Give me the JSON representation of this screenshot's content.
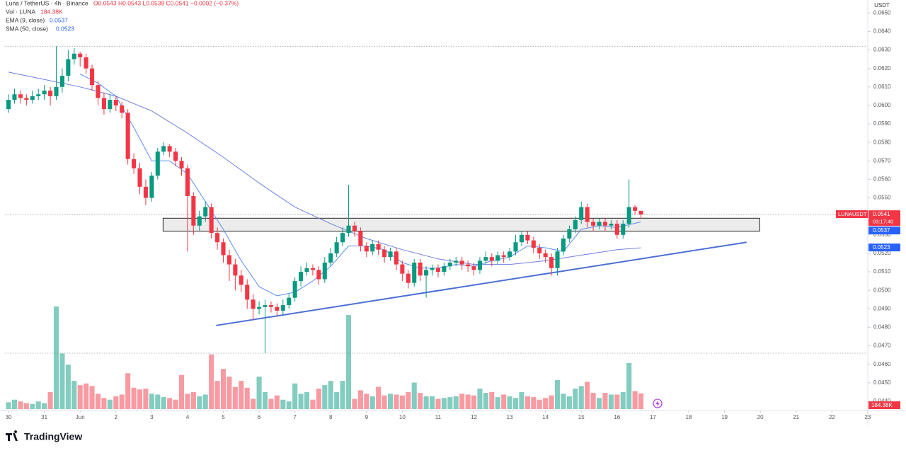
{
  "chart_data": {
    "type": "candlestick",
    "title": "Luna / TetherUS · 4h · Binance",
    "ohlc_summary": "O0.0543 H0.0543 L0.0539 C0.0541 −0.0002 (−0.37%)",
    "currency": "USDT",
    "countdown": "03:17:40",
    "brand": "TradingView",
    "up_color": "#089981",
    "down_color": "#f23645",
    "x": [
      0,
      1,
      2,
      3,
      4,
      5,
      6,
      7,
      8,
      9,
      10,
      11,
      12,
      13,
      14,
      15,
      16,
      17,
      18,
      19,
      20,
      21,
      22,
      23,
      24,
      25,
      26,
      27,
      28,
      29,
      30,
      31,
      32,
      33,
      34,
      35,
      36,
      37,
      38,
      39,
      40,
      41,
      42,
      43,
      44,
      45,
      46,
      47,
      48,
      49,
      50,
      51,
      52,
      53,
      54,
      55,
      56,
      57,
      58,
      59,
      60,
      61,
      62,
      63,
      64,
      65,
      66,
      67,
      68,
      69,
      70,
      71,
      72,
      73,
      74,
      75,
      76,
      77,
      78,
      79,
      80,
      81,
      82,
      83,
      84,
      85,
      86,
      87,
      88,
      89,
      90,
      91,
      92,
      93,
      94,
      95,
      96,
      97,
      98,
      99,
      100,
      101,
      102,
      103,
      104,
      105,
      106
    ],
    "open": [
      0.0598,
      0.0603,
      0.0606,
      0.0604,
      0.0603,
      0.0605,
      0.0606,
      0.0608,
      0.0605,
      0.061,
      0.0616,
      0.0625,
      0.0628,
      0.0626,
      0.062,
      0.0611,
      0.0604,
      0.0598,
      0.0603,
      0.06,
      0.0596,
      0.0571,
      0.0566,
      0.0556,
      0.055,
      0.0562,
      0.0575,
      0.0578,
      0.0575,
      0.057,
      0.0566,
      0.0551,
      0.0535,
      0.054,
      0.0545,
      0.0531,
      0.0526,
      0.0519,
      0.0514,
      0.0508,
      0.0503,
      0.0495,
      0.049,
      0.0491,
      0.0492,
      0.0491,
      0.0489,
      0.0492,
      0.0496,
      0.0505,
      0.051,
      0.0512,
      0.0511,
      0.0506,
      0.0515,
      0.052,
      0.0526,
      0.0531,
      0.0535,
      0.0532,
      0.0524,
      0.0521,
      0.0525,
      0.0522,
      0.0518,
      0.0521,
      0.0514,
      0.0509,
      0.0504,
      0.0515,
      0.0508,
      0.0511,
      0.0512,
      0.051,
      0.0513,
      0.0515,
      0.0516,
      0.0514,
      0.0513,
      0.0511,
      0.0516,
      0.0518,
      0.0516,
      0.0519,
      0.0518,
      0.0521,
      0.0526,
      0.053,
      0.0527,
      0.0523,
      0.052,
      0.0518,
      0.0512,
      0.0521,
      0.0528,
      0.0533,
      0.0538,
      0.0545,
      0.0537,
      0.0535,
      0.0537,
      0.0535,
      0.0536,
      0.053,
      0.0536,
      0.0545,
      0.0543
    ],
    "high": [
      0.0606,
      0.0609,
      0.0608,
      0.0606,
      0.0608,
      0.0609,
      0.0611,
      0.061,
      0.0632,
      0.062,
      0.063,
      0.0631,
      0.0629,
      0.0628,
      0.0622,
      0.0613,
      0.0607,
      0.0606,
      0.0605,
      0.0602,
      0.0598,
      0.0574,
      0.0569,
      0.056,
      0.0564,
      0.0577,
      0.058,
      0.0579,
      0.0577,
      0.0572,
      0.0568,
      0.0553,
      0.0543,
      0.0548,
      0.0547,
      0.0534,
      0.0528,
      0.0522,
      0.0517,
      0.0511,
      0.0506,
      0.0498,
      0.0494,
      0.0495,
      0.0494,
      0.0493,
      0.0495,
      0.0498,
      0.0507,
      0.0513,
      0.0515,
      0.0514,
      0.0513,
      0.0518,
      0.0523,
      0.0529,
      0.0534,
      0.0557,
      0.0537,
      0.0534,
      0.0526,
      0.0527,
      0.0527,
      0.0524,
      0.0523,
      0.0523,
      0.0516,
      0.0511,
      0.0517,
      0.0517,
      0.0513,
      0.0514,
      0.0514,
      0.0515,
      0.0517,
      0.0518,
      0.0518,
      0.0516,
      0.0515,
      0.0518,
      0.0521,
      0.052,
      0.0521,
      0.0521,
      0.0523,
      0.053,
      0.0532,
      0.0532,
      0.0529,
      0.0525,
      0.0522,
      0.052,
      0.0523,
      0.053,
      0.0535,
      0.054,
      0.0548,
      0.0547,
      0.0539,
      0.0539,
      0.0539,
      0.0538,
      0.0538,
      0.0538,
      0.056,
      0.0546,
      0.0543
    ],
    "low": [
      0.0596,
      0.0601,
      0.0601,
      0.06,
      0.0601,
      0.0603,
      0.0603,
      0.06,
      0.0603,
      0.0607,
      0.0613,
      0.0622,
      0.0621,
      0.0617,
      0.0608,
      0.06,
      0.0595,
      0.0596,
      0.0597,
      0.0593,
      0.0568,
      0.0563,
      0.0552,
      0.0546,
      0.0548,
      0.056,
      0.0573,
      0.0572,
      0.0567,
      0.0562,
      0.0521,
      0.053,
      0.0532,
      0.0537,
      0.0528,
      0.0522,
      0.0515,
      0.0505,
      0.05,
      0.0499,
      0.049,
      0.0484,
      0.0487,
      0.0466,
      0.0488,
      0.0486,
      0.0487,
      0.049,
      0.0494,
      0.0502,
      0.0508,
      0.0508,
      0.0503,
      0.0504,
      0.0513,
      0.0518,
      0.0524,
      0.0529,
      0.0529,
      0.0521,
      0.0518,
      0.0519,
      0.0519,
      0.0515,
      0.0516,
      0.0511,
      0.0505,
      0.0501,
      0.0502,
      0.0505,
      0.0496,
      0.0508,
      0.0507,
      0.0508,
      0.0511,
      0.0513,
      0.0511,
      0.051,
      0.0508,
      0.0509,
      0.0514,
      0.0513,
      0.0514,
      0.0515,
      0.0516,
      0.0519,
      0.0524,
      0.0525,
      0.052,
      0.0517,
      0.0515,
      0.0508,
      0.0508,
      0.0519,
      0.0526,
      0.0531,
      0.0536,
      0.0534,
      0.0532,
      0.0533,
      0.0532,
      0.0533,
      0.0528,
      0.0528,
      0.0534,
      0.0541,
      0.0539
    ],
    "close": [
      0.0603,
      0.0606,
      0.0604,
      0.0603,
      0.0605,
      0.0606,
      0.0608,
      0.0605,
      0.061,
      0.0616,
      0.0625,
      0.0628,
      0.0626,
      0.062,
      0.0611,
      0.0604,
      0.0598,
      0.0603,
      0.06,
      0.0596,
      0.0571,
      0.0566,
      0.0556,
      0.055,
      0.0562,
      0.0575,
      0.0578,
      0.0575,
      0.057,
      0.0566,
      0.0551,
      0.0535,
      0.054,
      0.0545,
      0.0531,
      0.0526,
      0.0519,
      0.0514,
      0.0508,
      0.0503,
      0.0495,
      0.049,
      0.0491,
      0.0492,
      0.0491,
      0.0489,
      0.0492,
      0.0496,
      0.0505,
      0.051,
      0.0512,
      0.0511,
      0.0506,
      0.0515,
      0.052,
      0.0526,
      0.0531,
      0.0535,
      0.0532,
      0.0524,
      0.0521,
      0.0525,
      0.0522,
      0.0518,
      0.0521,
      0.0514,
      0.0509,
      0.0504,
      0.0515,
      0.0508,
      0.0511,
      0.0512,
      0.051,
      0.0513,
      0.0515,
      0.0516,
      0.0514,
      0.0513,
      0.0511,
      0.0516,
      0.0518,
      0.0516,
      0.0519,
      0.0518,
      0.0521,
      0.0526,
      0.053,
      0.0527,
      0.0523,
      0.052,
      0.0518,
      0.0512,
      0.0521,
      0.0528,
      0.0533,
      0.0538,
      0.0545,
      0.0537,
      0.0535,
      0.0537,
      0.0535,
      0.0536,
      0.053,
      0.0536,
      0.0545,
      0.0543,
      0.0541
    ],
    "volume": {
      "name": "Vol · LUNA",
      "last": "184.38K",
      "values": [
        80,
        110,
        90,
        70,
        60,
        90,
        70,
        200,
        1200,
        650,
        520,
        330,
        280,
        300,
        270,
        180,
        130,
        110,
        150,
        170,
        420,
        250,
        230,
        240,
        180,
        170,
        140,
        130,
        110,
        400,
        180,
        200,
        150,
        170,
        640,
        330,
        470,
        380,
        260,
        330,
        250,
        120,
        380,
        200,
        120,
        160,
        110,
        90,
        300,
        180,
        200,
        110,
        240,
        280,
        330,
        200,
        330,
        1100,
        120,
        220,
        180,
        150,
        260,
        160,
        180,
        170,
        160,
        200,
        310,
        190,
        150,
        150,
        120,
        130,
        140,
        150,
        180,
        170,
        160,
        240,
        190,
        200,
        140,
        170,
        150,
        130,
        200,
        150,
        140,
        110,
        130,
        160,
        340,
        180,
        150,
        240,
        270,
        320,
        190,
        130,
        190,
        170,
        170,
        200,
        540,
        210,
        184.38
      ]
    },
    "series": [
      {
        "name": "EMA (9, close)",
        "legend_value": "0.0537",
        "color": "#5b8def",
        "x": [
          12,
          15,
          18,
          21,
          24,
          27,
          30,
          33,
          36,
          39,
          42,
          45,
          48,
          51,
          54,
          57,
          60,
          63,
          66,
          69,
          72,
          75,
          78,
          81,
          84,
          87,
          90,
          93,
          96,
          99,
          102,
          106
        ],
        "values": [
          0.0617,
          0.0612,
          0.0605,
          0.0588,
          0.057,
          0.057,
          0.0563,
          0.0548,
          0.0533,
          0.0516,
          0.0502,
          0.0497,
          0.0499,
          0.0505,
          0.0513,
          0.0524,
          0.0524,
          0.0522,
          0.0515,
          0.0512,
          0.0512,
          0.0514,
          0.0513,
          0.0516,
          0.0518,
          0.0524,
          0.0523,
          0.0521,
          0.0533,
          0.0535,
          0.0534,
          0.0537
        ]
      },
      {
        "name": "SMA (50, close)",
        "legend_value": "0.0523",
        "color": "#6f7fe0",
        "x": [
          0,
          6,
          12,
          18,
          24,
          30,
          36,
          42,
          48,
          54,
          60,
          66,
          72,
          78,
          84,
          90,
          96,
          102,
          106
        ],
        "values": [
          0.0618,
          0.0614,
          0.061,
          0.0605,
          0.0597,
          0.0585,
          0.0572,
          0.0558,
          0.0545,
          0.0536,
          0.0528,
          0.0522,
          0.0517,
          0.0514,
          0.0514,
          0.0516,
          0.0519,
          0.0522,
          0.0523
        ]
      }
    ],
    "zone": {
      "x": [
        25.9,
        125.9
      ],
      "y": [
        0.0532,
        0.0539
      ]
    },
    "trendline": {
      "x": [
        34.8,
        123.7
      ],
      "y": [
        0.0481,
        0.0526
      ],
      "color": "#4c6fd6"
    },
    "hlines": [
      0.0632,
      0.0466,
      0.0541
    ],
    "price_tags": [
      {
        "name": "LUNAUSDT",
        "value": 0.0541,
        "label": "0.0541",
        "color": "#f23645"
      },
      {
        "value": 0.0537,
        "label": "0.0537",
        "color": "#2962ff"
      },
      {
        "value": 0.0523,
        "label": "0.0523",
        "color": "#2962ff"
      }
    ],
    "xlim": [
      -0.6,
      143.9
    ],
    "xticks": [
      {
        "value": 0,
        "label": "30"
      },
      {
        "value": 6,
        "label": "31"
      },
      {
        "value": 12,
        "label": "Jun"
      },
      {
        "value": 18,
        "label": "2"
      },
      {
        "value": 24,
        "label": "3"
      },
      {
        "value": 30,
        "label": "4"
      },
      {
        "value": 36,
        "label": "5"
      },
      {
        "value": 42,
        "label": "6"
      },
      {
        "value": 48,
        "label": "7"
      },
      {
        "value": 54,
        "label": "8"
      },
      {
        "value": 60,
        "label": "9"
      },
      {
        "value": 66,
        "label": "10"
      },
      {
        "value": 72,
        "label": "11"
      },
      {
        "value": 78,
        "label": "12"
      },
      {
        "value": 84,
        "label": "13"
      },
      {
        "value": 90,
        "label": "14"
      },
      {
        "value": 96,
        "label": "15"
      },
      {
        "value": 102,
        "label": "16"
      },
      {
        "value": 108,
        "label": "17"
      },
      {
        "value": 114,
        "label": "18"
      },
      {
        "value": 120,
        "label": "19"
      },
      {
        "value": 126,
        "label": "20"
      },
      {
        "value": 132,
        "label": "21"
      },
      {
        "value": 138,
        "label": "22"
      },
      {
        "value": 144,
        "label": "23"
      }
    ],
    "ylim": [
      0.0435,
      0.0657
    ],
    "yticks": [
      {
        "value": 0.044,
        "label": "0.0440"
      },
      {
        "value": 0.045,
        "label": "0.0450"
      },
      {
        "value": 0.046,
        "label": "0.0460"
      },
      {
        "value": 0.047,
        "label": "0.0470"
      },
      {
        "value": 0.048,
        "label": "0.0480"
      },
      {
        "value": 0.049,
        "label": "0.0490"
      },
      {
        "value": 0.05,
        "label": "0.0500"
      },
      {
        "value": 0.051,
        "label": "0.0510"
      },
      {
        "value": 0.052,
        "label": "0.0520"
      },
      {
        "value": 0.053,
        "label": "0.0530"
      },
      {
        "value": 0.054,
        "label": "0.0540"
      },
      {
        "value": 0.055,
        "label": "0.0550"
      },
      {
        "value": 0.056,
        "label": "0.0560"
      },
      {
        "value": 0.057,
        "label": "0.0570"
      },
      {
        "value": 0.058,
        "label": "0.0580"
      },
      {
        "value": 0.059,
        "label": "0.0590"
      },
      {
        "value": 0.06,
        "label": "0.0600"
      },
      {
        "value": 0.061,
        "label": "0.0610"
      },
      {
        "value": 0.062,
        "label": "0.0620"
      },
      {
        "value": 0.063,
        "label": "0.0630"
      },
      {
        "value": 0.064,
        "label": "0.0640"
      },
      {
        "value": 0.065,
        "label": "0.0650"
      }
    ],
    "grid": false
  }
}
